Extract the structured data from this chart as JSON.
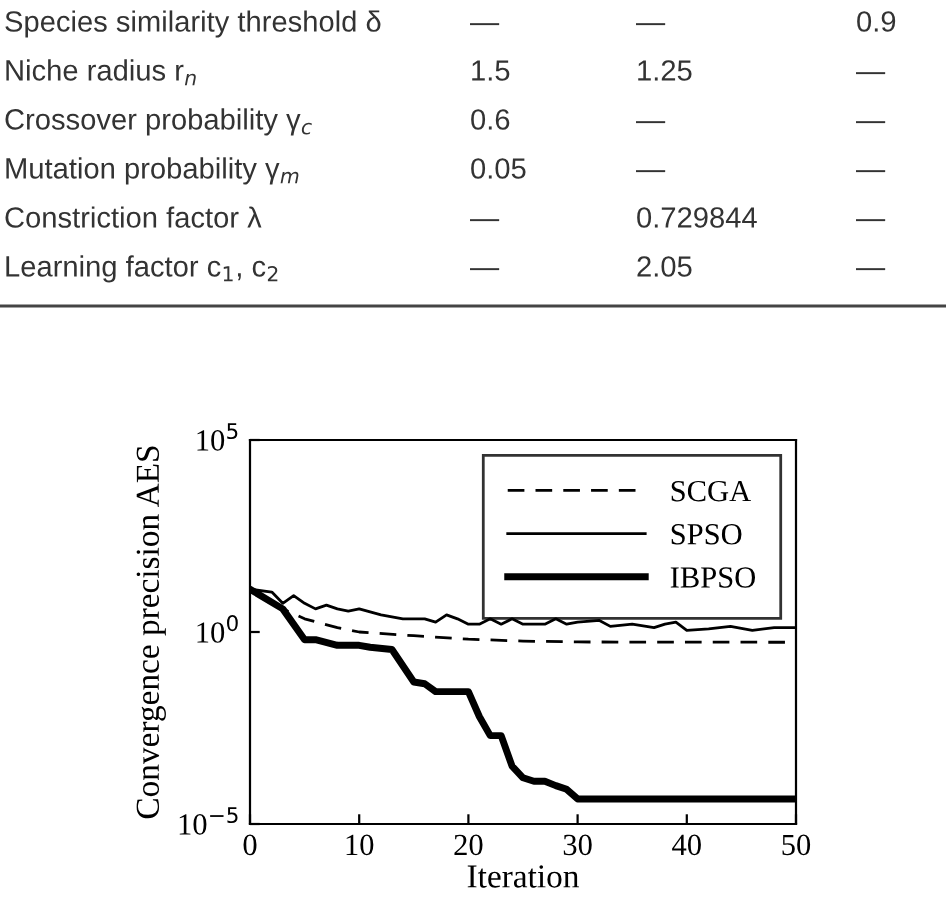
{
  "chart_data": {
    "type": "line",
    "log": "y",
    "xlabel": "Iteration",
    "ylabel": "Convergence precision AES",
    "xlim": [
      0,
      50
    ],
    "xticks": [
      0,
      10,
      20,
      30,
      40,
      50
    ],
    "ylim": [
      1e-05,
      100000
    ],
    "yticks": [
      {
        "value": 1e-05,
        "label": "10$^{−5}$"
      },
      {
        "value": 1,
        "label": "10$^{0}$"
      },
      {
        "value": 100000,
        "label": "10$^{5}$"
      }
    ],
    "grid": false,
    "legend": "top right",
    "marker": "none",
    "series": [
      {
        "name": "SCGA",
        "color": "#000000",
        "line_style": "dashed",
        "x": [
          0,
          3,
          5,
          8,
          10,
          15,
          20,
          25,
          30,
          50
        ],
        "values": [
          13,
          4,
          2.2,
          1.3,
          1,
          0.8,
          0.65,
          0.58,
          0.55,
          0.54
        ]
      },
      {
        "name": "SPSO",
        "color": "#000000",
        "line_style": "solid",
        "x": [
          0,
          2,
          3,
          4,
          5,
          6,
          7,
          8,
          9,
          10,
          12,
          14,
          16,
          17,
          18,
          19,
          20,
          21,
          22,
          23,
          24,
          25,
          27,
          28,
          29,
          30,
          32,
          33,
          35,
          37,
          38,
          39,
          40,
          42,
          44,
          46,
          48,
          50
        ],
        "values": [
          13,
          11,
          5.6,
          8.9,
          5.6,
          4,
          5,
          4,
          3.5,
          4,
          2.8,
          2.2,
          2.2,
          1.8,
          2.8,
          2.2,
          1.6,
          1.6,
          2.2,
          1.6,
          2.2,
          1.6,
          1.6,
          2.2,
          1.6,
          1.8,
          2,
          1.4,
          1.6,
          1.3,
          1.6,
          1.8,
          1.1,
          1.2,
          1.4,
          1.1,
          1.3,
          1.3
        ]
      },
      {
        "name": "IBPSO",
        "color": "#000000",
        "line_style": "solid",
        "x": [
          0,
          3,
          5,
          6,
          8,
          10,
          11,
          13,
          15,
          16,
          17,
          20,
          21,
          22,
          23,
          24,
          25,
          26,
          27,
          28,
          29,
          30,
          50
        ],
        "values": [
          13,
          4,
          0.63,
          0.63,
          0.45,
          0.45,
          0.4,
          0.35,
          0.05,
          0.045,
          0.028,
          0.028,
          0.0063,
          0.002,
          0.002,
          0.00032,
          0.00016,
          0.00013,
          0.00013,
          0.0001,
          8e-05,
          4.5e-05,
          4.5e-05
        ]
      }
    ],
    "annotations": [
      "Species similarity threshold δ",
      "—",
      "—",
      "0.9",
      "Niche radius r$_{n}$",
      "1.5",
      "1.25",
      "—",
      "Crossover probability γ$_{c}$",
      "0.6",
      "—",
      "—",
      "Mutation probability γ$_{m}$",
      "0.05",
      "—",
      "—",
      "Constriction factor λ",
      "—",
      "0.729844",
      "—",
      "Learning factor c$_{1}$, c$_{2}$",
      "—",
      "2.05",
      "—"
    ]
  }
}
